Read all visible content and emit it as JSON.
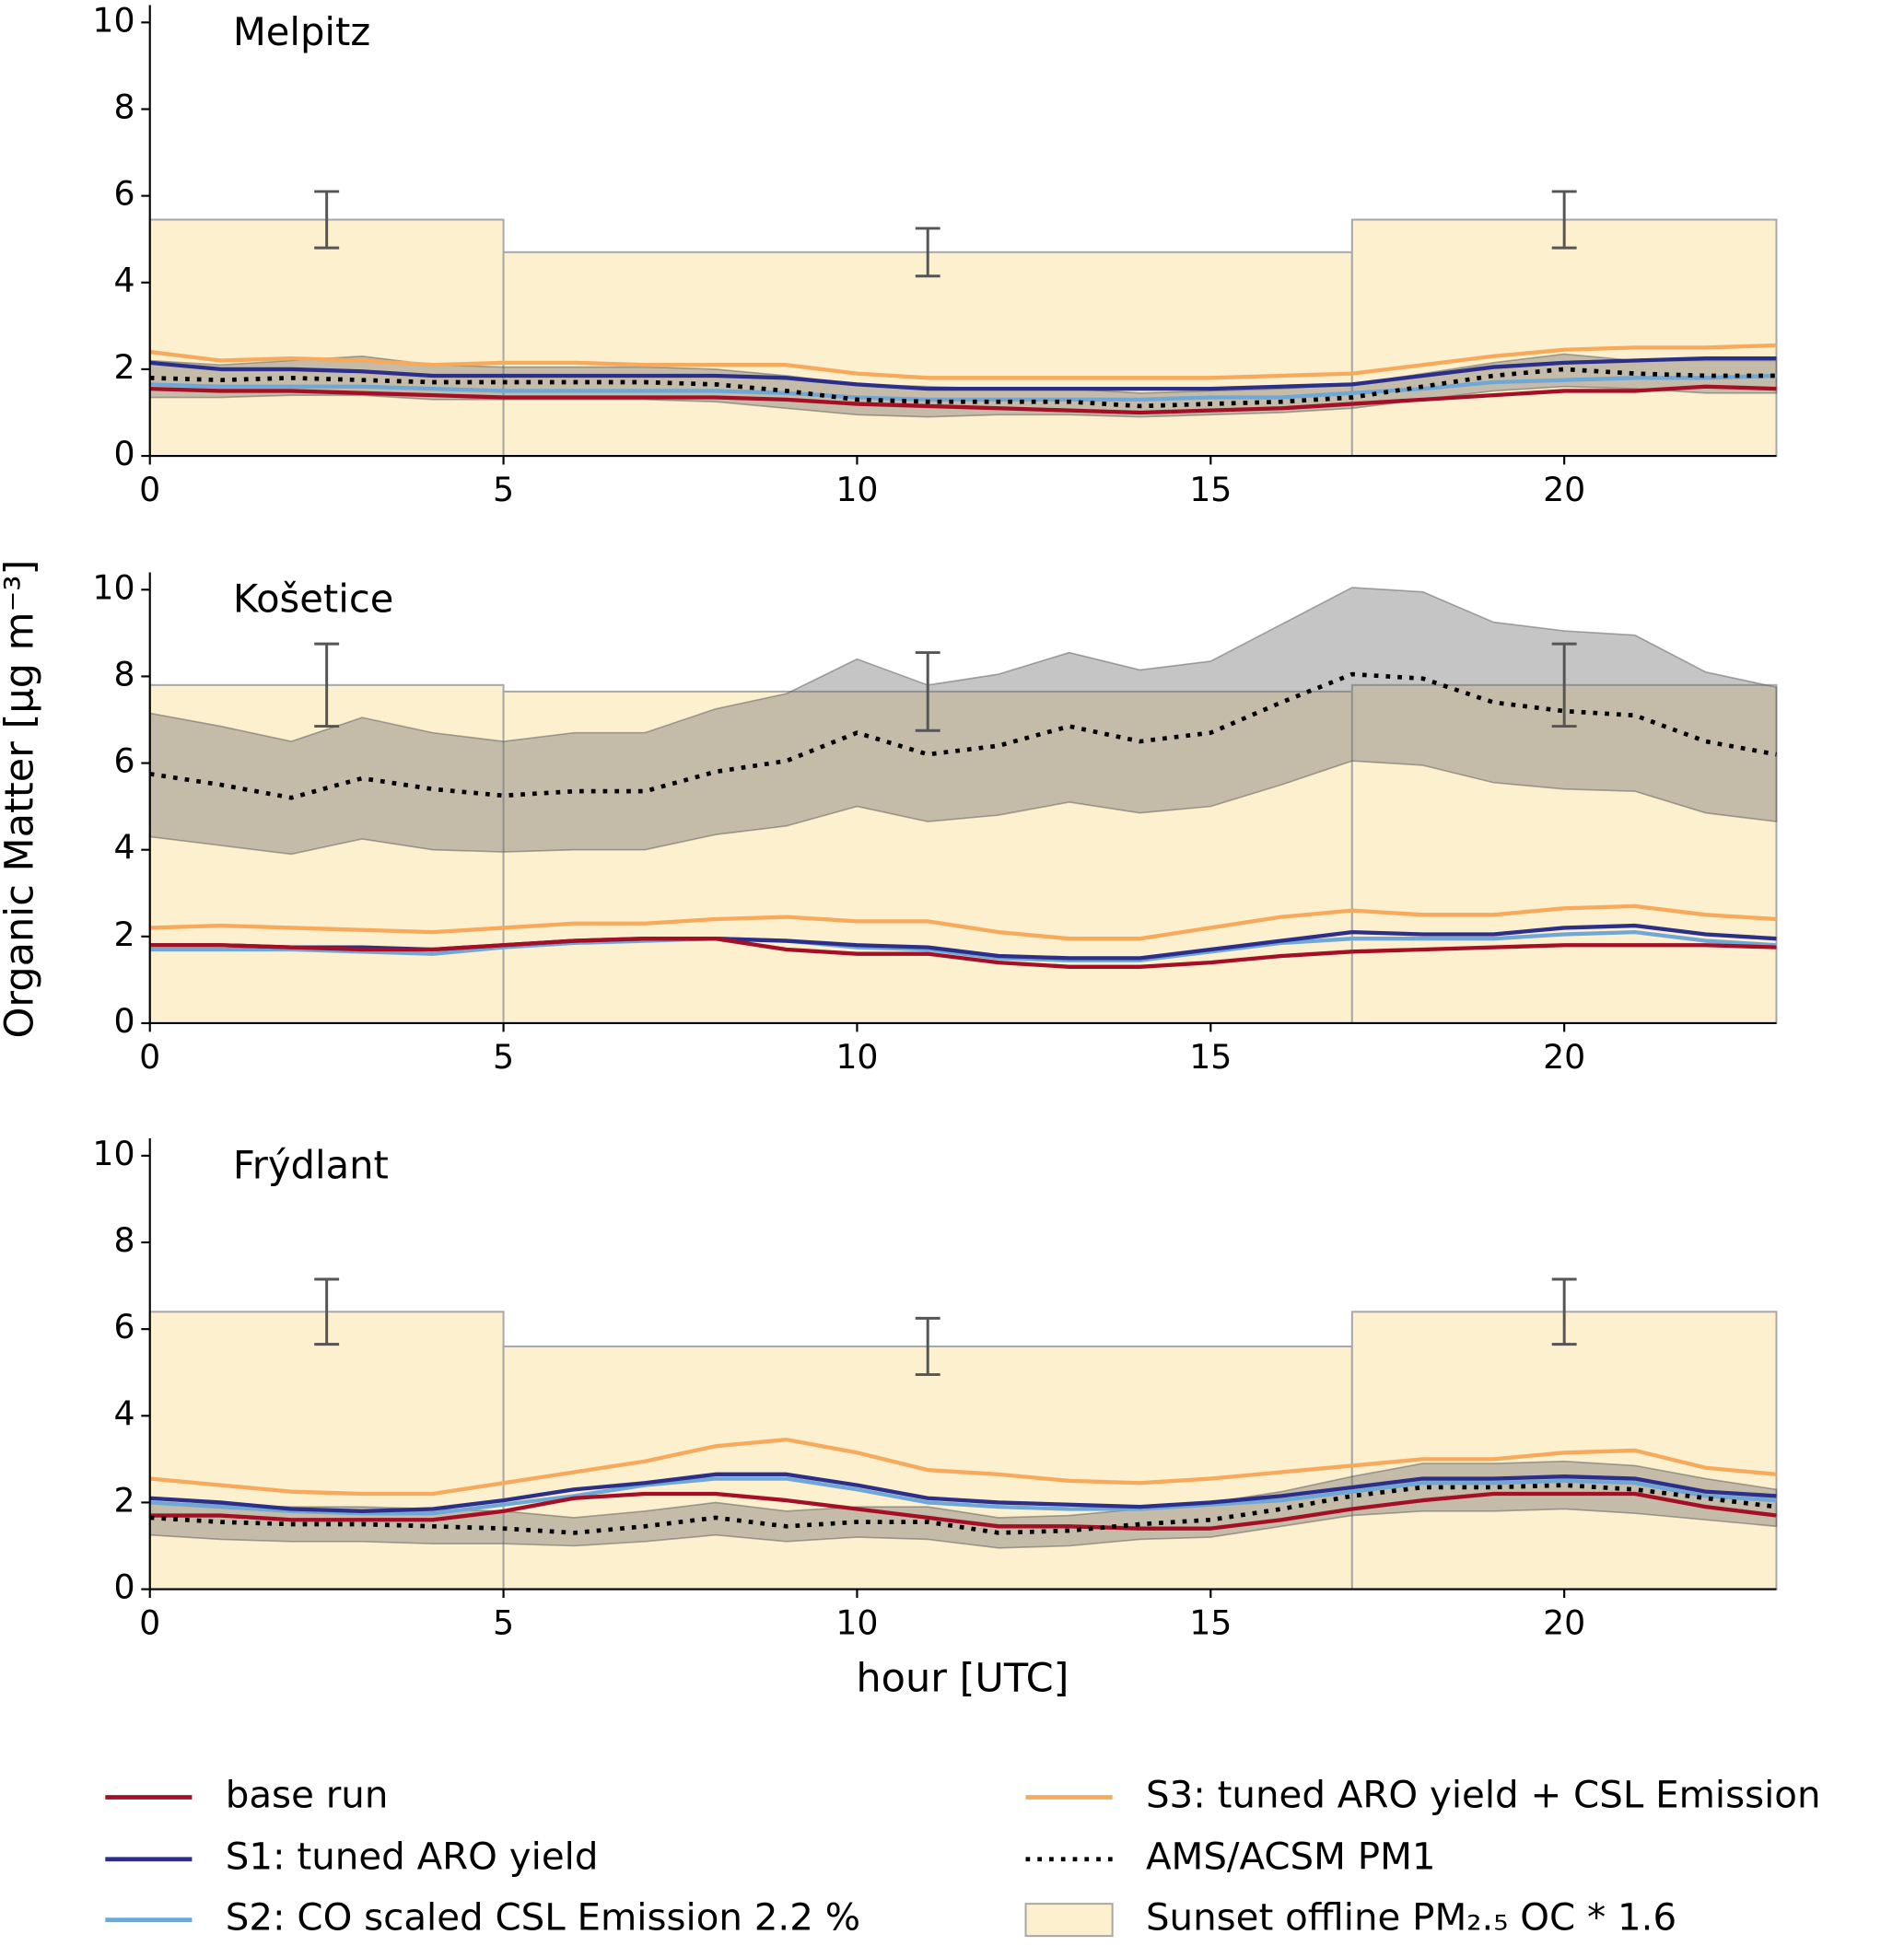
{
  "ylabel": "Organic Matter [μg m⁻³]",
  "xlabel": "hour [UTC]",
  "legend": [
    {
      "name": "base run",
      "color": "#a50f25"
    },
    {
      "name": "S1: tuned ARO yield",
      "color": "#2b2f8a"
    },
    {
      "name": "S2: CO scaled CSL Emission 2.2 %",
      "color": "#6fa8d6"
    },
    {
      "name": "S3: tuned ARO yield + CSL Emission",
      "color": "#f7a95c"
    },
    {
      "name": "AMS/ACSM PM1",
      "color": "#000000"
    },
    {
      "name": "Sunset offline PM₂.₅ OC * 1.6",
      "color": "#fdf0cf"
    }
  ],
  "chart_data": [
    {
      "type": "line",
      "title": "Melpitz",
      "x": [
        0,
        1,
        2,
        3,
        4,
        5,
        6,
        7,
        8,
        9,
        10,
        11,
        12,
        13,
        14,
        15,
        16,
        17,
        18,
        19,
        20,
        21,
        22,
        23
      ],
      "xlim": [
        0,
        23
      ],
      "ylim": [
        0,
        10.4
      ],
      "xticks": [
        0,
        5,
        10,
        15,
        20
      ],
      "yticks": [
        0,
        2,
        4,
        6,
        8,
        10
      ],
      "series": [
        {
          "values": [
            1.55,
            1.5,
            1.5,
            1.45,
            1.4,
            1.35,
            1.35,
            1.35,
            1.35,
            1.3,
            1.2,
            1.15,
            1.1,
            1.05,
            1.0,
            1.05,
            1.1,
            1.2,
            1.3,
            1.4,
            1.5,
            1.5,
            1.6,
            1.55
          ]
        },
        {
          "values": [
            2.15,
            2.0,
            2.0,
            1.95,
            1.85,
            1.85,
            1.85,
            1.85,
            1.85,
            1.8,
            1.65,
            1.55,
            1.55,
            1.55,
            1.55,
            1.55,
            1.6,
            1.65,
            1.85,
            2.05,
            2.15,
            2.2,
            2.25,
            2.25
          ]
        },
        {
          "values": [
            1.65,
            1.6,
            1.6,
            1.6,
            1.55,
            1.5,
            1.5,
            1.5,
            1.5,
            1.45,
            1.35,
            1.3,
            1.3,
            1.3,
            1.3,
            1.35,
            1.35,
            1.45,
            1.55,
            1.7,
            1.75,
            1.8,
            1.8,
            1.85
          ]
        },
        {
          "values": [
            2.4,
            2.2,
            2.25,
            2.2,
            2.1,
            2.15,
            2.15,
            2.1,
            2.1,
            2.1,
            1.9,
            1.8,
            1.8,
            1.8,
            1.8,
            1.8,
            1.85,
            1.9,
            2.1,
            2.3,
            2.45,
            2.5,
            2.5,
            2.55
          ]
        },
        {
          "values": [
            1.8,
            1.75,
            1.8,
            1.75,
            1.7,
            1.7,
            1.7,
            1.7,
            1.65,
            1.5,
            1.3,
            1.25,
            1.25,
            1.25,
            1.15,
            1.2,
            1.25,
            1.35,
            1.6,
            1.85,
            2.0,
            1.9,
            1.85,
            1.85
          ]
        }
      ],
      "band": {
        "low": [
          1.35,
          1.35,
          1.4,
          1.4,
          1.3,
          1.3,
          1.3,
          1.3,
          1.25,
          1.1,
          0.95,
          0.9,
          0.95,
          0.95,
          0.9,
          0.95,
          1.0,
          1.1,
          1.3,
          1.5,
          1.6,
          1.55,
          1.45,
          1.45
        ],
        "high": [
          2.2,
          2.1,
          2.2,
          2.3,
          2.1,
          2.05,
          2.05,
          2.05,
          2.0,
          1.85,
          1.65,
          1.6,
          1.55,
          1.55,
          1.45,
          1.5,
          1.55,
          1.65,
          1.9,
          2.15,
          2.35,
          2.2,
          2.2,
          2.2
        ]
      },
      "sunset": {
        "bins": [
          0,
          5,
          17,
          23
        ],
        "values": [
          5.45,
          4.7,
          5.45
        ],
        "errors": [
          0.65,
          0.55,
          0.65
        ],
        "error_x": [
          2.5,
          11,
          20
        ]
      }
    },
    {
      "type": "line",
      "title": "Košetice",
      "x": [
        0,
        1,
        2,
        3,
        4,
        5,
        6,
        7,
        8,
        9,
        10,
        11,
        12,
        13,
        14,
        15,
        16,
        17,
        18,
        19,
        20,
        21,
        22,
        23
      ],
      "xlim": [
        0,
        23
      ],
      "ylim": [
        0,
        10.4
      ],
      "xticks": [
        0,
        5,
        10,
        15,
        20
      ],
      "yticks": [
        0,
        2,
        4,
        6,
        8,
        10
      ],
      "series": [
        {
          "values": [
            1.8,
            1.8,
            1.75,
            1.7,
            1.7,
            1.8,
            1.9,
            1.95,
            1.95,
            1.7,
            1.6,
            1.6,
            1.4,
            1.3,
            1.3,
            1.4,
            1.55,
            1.65,
            1.7,
            1.75,
            1.8,
            1.8,
            1.8,
            1.75
          ]
        },
        {
          "values": [
            1.8,
            1.8,
            1.75,
            1.75,
            1.7,
            1.8,
            1.9,
            1.95,
            1.95,
            1.9,
            1.8,
            1.75,
            1.55,
            1.5,
            1.5,
            1.7,
            1.9,
            2.1,
            2.05,
            2.05,
            2.2,
            2.25,
            2.05,
            1.95
          ]
        },
        {
          "values": [
            1.7,
            1.7,
            1.7,
            1.65,
            1.6,
            1.75,
            1.85,
            1.9,
            1.95,
            1.9,
            1.75,
            1.7,
            1.5,
            1.45,
            1.45,
            1.65,
            1.85,
            1.95,
            1.95,
            1.95,
            2.05,
            2.1,
            1.9,
            1.8
          ]
        },
        {
          "values": [
            2.2,
            2.25,
            2.2,
            2.15,
            2.1,
            2.2,
            2.3,
            2.3,
            2.4,
            2.45,
            2.35,
            2.35,
            2.1,
            1.95,
            1.95,
            2.2,
            2.45,
            2.6,
            2.5,
            2.5,
            2.65,
            2.7,
            2.5,
            2.4
          ]
        },
        {
          "values": [
            5.75,
            5.5,
            5.2,
            5.65,
            5.4,
            5.25,
            5.35,
            5.35,
            5.8,
            6.05,
            6.7,
            6.2,
            6.4,
            6.85,
            6.5,
            6.7,
            7.4,
            8.05,
            7.95,
            7.4,
            7.2,
            7.1,
            6.5,
            6.2
          ]
        }
      ],
      "band": {
        "low": [
          4.3,
          4.1,
          3.9,
          4.25,
          4.0,
          3.95,
          4.0,
          4.0,
          4.35,
          4.55,
          5.0,
          4.65,
          4.8,
          5.1,
          4.85,
          5.0,
          5.5,
          6.05,
          5.95,
          5.55,
          5.4,
          5.35,
          4.85,
          4.65
        ],
        "high": [
          7.15,
          6.85,
          6.5,
          7.05,
          6.7,
          6.5,
          6.7,
          6.7,
          7.25,
          7.6,
          8.4,
          7.8,
          8.05,
          8.55,
          8.15,
          8.35,
          9.2,
          10.05,
          9.95,
          9.25,
          9.05,
          8.95,
          8.1,
          7.75
        ]
      },
      "sunset": {
        "bins": [
          0,
          5,
          17,
          23
        ],
        "values": [
          7.8,
          7.65,
          7.8
        ],
        "errors": [
          0.95,
          0.9,
          0.95
        ],
        "error_x": [
          2.5,
          11,
          20
        ]
      }
    },
    {
      "type": "line",
      "title": "Frýdlant",
      "x": [
        0,
        1,
        2,
        3,
        4,
        5,
        6,
        7,
        8,
        9,
        10,
        11,
        12,
        13,
        14,
        15,
        16,
        17,
        18,
        19,
        20,
        21,
        22,
        23
      ],
      "xlim": [
        0,
        23
      ],
      "ylim": [
        0,
        10.4
      ],
      "xticks": [
        0,
        5,
        10,
        15,
        20
      ],
      "yticks": [
        0,
        2,
        4,
        6,
        8,
        10
      ],
      "series": [
        {
          "values": [
            1.7,
            1.7,
            1.6,
            1.6,
            1.6,
            1.8,
            2.1,
            2.2,
            2.2,
            2.05,
            1.85,
            1.65,
            1.45,
            1.45,
            1.4,
            1.4,
            1.6,
            1.85,
            2.05,
            2.2,
            2.2,
            2.2,
            1.9,
            1.7
          ]
        },
        {
          "values": [
            2.1,
            2.0,
            1.85,
            1.8,
            1.85,
            2.05,
            2.3,
            2.45,
            2.65,
            2.65,
            2.4,
            2.1,
            2.0,
            1.95,
            1.9,
            2.0,
            2.15,
            2.35,
            2.55,
            2.55,
            2.6,
            2.55,
            2.25,
            2.15
          ]
        },
        {
          "values": [
            2.0,
            1.9,
            1.8,
            1.75,
            1.75,
            1.95,
            2.15,
            2.4,
            2.55,
            2.55,
            2.3,
            2.0,
            1.9,
            1.85,
            1.85,
            1.95,
            2.05,
            2.25,
            2.45,
            2.45,
            2.5,
            2.45,
            2.15,
            2.05
          ]
        },
        {
          "values": [
            2.55,
            2.4,
            2.25,
            2.2,
            2.2,
            2.45,
            2.7,
            2.95,
            3.3,
            3.45,
            3.15,
            2.75,
            2.65,
            2.5,
            2.45,
            2.55,
            2.7,
            2.85,
            3.0,
            3.0,
            3.15,
            3.2,
            2.8,
            2.65
          ]
        },
        {
          "values": [
            1.65,
            1.55,
            1.5,
            1.5,
            1.45,
            1.4,
            1.3,
            1.45,
            1.65,
            1.45,
            1.55,
            1.55,
            1.3,
            1.35,
            1.5,
            1.6,
            1.85,
            2.15,
            2.35,
            2.35,
            2.4,
            2.3,
            2.1,
            1.9
          ]
        }
      ],
      "band": {
        "low": [
          1.25,
          1.15,
          1.1,
          1.1,
          1.05,
          1.05,
          1.0,
          1.1,
          1.25,
          1.1,
          1.2,
          1.15,
          0.95,
          1.0,
          1.15,
          1.2,
          1.45,
          1.7,
          1.8,
          1.8,
          1.85,
          1.75,
          1.6,
          1.45
        ],
        "high": [
          2.0,
          1.95,
          1.9,
          1.9,
          1.85,
          1.8,
          1.65,
          1.8,
          2.0,
          1.8,
          1.9,
          1.9,
          1.65,
          1.7,
          1.85,
          2.0,
          2.25,
          2.6,
          2.9,
          2.9,
          2.95,
          2.85,
          2.55,
          2.3
        ]
      },
      "sunset": {
        "bins": [
          0,
          5,
          17,
          23
        ],
        "values": [
          6.4,
          5.6,
          6.4
        ],
        "errors": [
          0.75,
          0.65,
          0.75
        ],
        "error_x": [
          2.5,
          11,
          20
        ]
      }
    }
  ]
}
